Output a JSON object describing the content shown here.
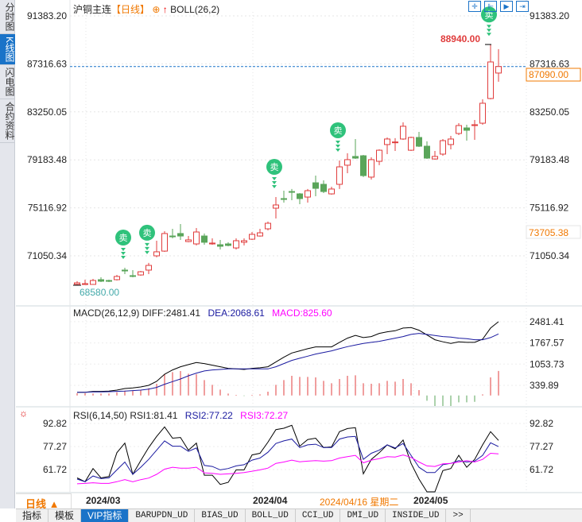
{
  "sidebar": {
    "tabs": [
      {
        "label": "分时图",
        "active": false
      },
      {
        "label": "K线图",
        "active": true
      },
      {
        "label": "闪电图",
        "active": false
      },
      {
        "label": "合约资料",
        "active": false
      }
    ]
  },
  "header": {
    "symbol": "沪铜主连",
    "period": "【日线】",
    "indicator": "BOLL(26,2)"
  },
  "toolbar": {
    "icons": [
      "crosshair-icon",
      "zoom-range-icon",
      "play-range-icon",
      "jump-end-icon"
    ]
  },
  "colors": {
    "up": "#e03c3c",
    "down": "#5aa55a",
    "diff": "#000000",
    "dea": "#1a1aa0",
    "macd": "#ff00ff",
    "accent": "#1a73c8",
    "orange": "#f07800"
  },
  "price_axis": {
    "ticks": [
      "91383.20",
      "87316.63",
      "83250.05",
      "79183.48",
      "75116.92",
      "71050.34"
    ],
    "current": "87090.00",
    "mark": "73705.38"
  },
  "annotations": {
    "high": "88940.00",
    "low": "68580.00",
    "sell_label": "卖",
    "sell_at": [
      7,
      10,
      26,
      34,
      53
    ]
  },
  "chart_data": [
    {
      "type": "candlestick",
      "ylim": [
        68580,
        91383.2
      ],
      "ohlc": [
        [
          68640,
          68760,
          68900,
          68580
        ],
        [
          68630,
          68690,
          69030,
          68600
        ],
        [
          68630,
          68960,
          69100,
          68600
        ],
        [
          69030,
          68900,
          69230,
          68830
        ],
        [
          68960,
          68900,
          69030,
          68830
        ],
        [
          69030,
          69300,
          69430,
          68960
        ],
        [
          69840,
          69770,
          70040,
          69500
        ],
        [
          69370,
          69340,
          69840,
          69230
        ],
        [
          69430,
          69700,
          69770,
          69370
        ],
        [
          69840,
          70240,
          70450,
          69500
        ],
        [
          71050,
          71390,
          72330,
          70920
        ],
        [
          71450,
          72940,
          73140,
          71390
        ],
        [
          72730,
          72670,
          73340,
          72530
        ],
        [
          72940,
          72730,
          73740,
          72400
        ],
        [
          72260,
          72400,
          72730,
          72200
        ],
        [
          72060,
          73070,
          73410,
          71930
        ],
        [
          72730,
          72200,
          72940,
          71990
        ],
        [
          72060,
          72130,
          72530,
          71990
        ],
        [
          71990,
          71860,
          72400,
          71590
        ],
        [
          72060,
          71930,
          72200,
          71860
        ],
        [
          71720,
          72330,
          72530,
          71590
        ],
        [
          72200,
          72330,
          72530,
          71930
        ],
        [
          72460,
          72870,
          73070,
          72400
        ],
        [
          72730,
          73000,
          73340,
          72670
        ],
        [
          73340,
          73810,
          73950,
          73200
        ],
        [
          75090,
          75360,
          76030,
          74210
        ],
        [
          75900,
          75830,
          76570,
          75560
        ],
        [
          76500,
          76440,
          76710,
          75760
        ],
        [
          76300,
          75900,
          76370,
          75430
        ],
        [
          76030,
          76570,
          76710,
          75560
        ],
        [
          77240,
          76770,
          77850,
          76100
        ],
        [
          77110,
          76500,
          77450,
          76370
        ],
        [
          76300,
          76710,
          76910,
          76230
        ],
        [
          77110,
          78590,
          79130,
          76710
        ],
        [
          78730,
          79200,
          79740,
          78050
        ],
        [
          79470,
          79330,
          80950,
          79260
        ],
        [
          79530,
          77850,
          79600,
          77720
        ],
        [
          77720,
          79200,
          79400,
          77510
        ],
        [
          79060,
          80000,
          80070,
          78730
        ],
        [
          80480,
          80950,
          81080,
          79670
        ],
        [
          80680,
          80700,
          81020,
          79940
        ],
        [
          80950,
          82030,
          82360,
          80880
        ],
        [
          80000,
          81080,
          81150,
          79940
        ],
        [
          81080,
          80340,
          81550,
          80270
        ],
        [
          80340,
          79330,
          80750,
          79260
        ],
        [
          79260,
          79470,
          79940,
          79200
        ],
        [
          79670,
          80810,
          80950,
          79530
        ],
        [
          80480,
          80950,
          81220,
          80070
        ],
        [
          81420,
          82090,
          82290,
          81280
        ],
        [
          81890,
          81690,
          82160,
          80810
        ],
        [
          82090,
          82160,
          82560,
          80880
        ],
        [
          82290,
          83980,
          84310,
          82160
        ],
        [
          84380,
          87480,
          88940,
          84310
        ],
        [
          86540,
          87090,
          88560,
          85800
        ]
      ]
    },
    {
      "type": "macd",
      "title": "MACD(26,12,9)",
      "diff_label": "DIFF:2481.41",
      "dea_label": "DEA:2068.61",
      "macd_label": "MACD:825.60",
      "ticks": [
        "2481.41",
        "1767.57",
        "1053.73",
        "339.89"
      ],
      "diff": [
        108,
        108,
        135,
        135,
        144,
        179,
        233,
        251,
        286,
        340,
        474,
        715,
        857,
        964,
        1036,
        1107,
        1071,
        1018,
        964,
        911,
        893,
        875,
        911,
        929,
        964,
        1125,
        1285,
        1428,
        1500,
        1571,
        1633,
        1633,
        1633,
        1785,
        1928,
        2017,
        1946,
        1981,
        2088,
        2142,
        2177,
        2267,
        2284,
        2195,
        2035,
        1874,
        1803,
        1749,
        1803,
        1785,
        1785,
        1892,
        2267,
        2481.41
      ],
      "dea": [
        108,
        108,
        117,
        117,
        126,
        135,
        144,
        162,
        179,
        215,
        269,
        376,
        465,
        554,
        661,
        750,
        822,
        857,
        875,
        893,
        893,
        893,
        893,
        893,
        893,
        964,
        1071,
        1178,
        1250,
        1321,
        1392,
        1446,
        1500,
        1571,
        1642,
        1696,
        1749,
        1785,
        1821,
        1874,
        1928,
        1981,
        2053,
        2088,
        2053,
        2017,
        1981,
        1963,
        1928,
        1910,
        1874,
        1874,
        1946,
        2068.61
      ],
      "macd": [
        71,
        71,
        62,
        62,
        62,
        107,
        160,
        160,
        178,
        241,
        392,
        713,
        784,
        820,
        731,
        713,
        517,
        356,
        196,
        62,
        18,
        -18,
        18,
        36,
        125,
        356,
        517,
        659,
        624,
        624,
        606,
        490,
        410,
        552,
        659,
        677,
        410,
        392,
        410,
        490,
        463,
        552,
        410,
        178,
        -178,
        -356,
        -356,
        -356,
        -232,
        -232,
        -214,
        36,
        606,
        825.6
      ]
    },
    {
      "type": "line",
      "title": "RSI(6,14,50)",
      "rsi1_label": "RSI1:81.41",
      "rsi2_label": "RSI2:77.22",
      "rsi3_label": "RSI3:72.27",
      "ticks": [
        "92.82",
        "77.27",
        "61.72"
      ],
      "rsi1": [
        56.1,
        53.5,
        62.4,
        56.1,
        57.0,
        73.1,
        79.6,
        58.5,
        67.7,
        76.6,
        84.1,
        90.5,
        82.9,
        83.4,
        74.8,
        79.6,
        57.9,
        57.9,
        51.7,
        53.1,
        61.5,
        61.5,
        71.6,
        72.7,
        80.2,
        88.7,
        89.6,
        91.6,
        77.5,
        82.0,
        82.9,
        76.6,
        77.0,
        87.3,
        89.4,
        90.0,
        58.8,
        68.6,
        73.1,
        78.4,
        75.7,
        81.6,
        65.9,
        55.3,
        46.7,
        46.7,
        61.0,
        62.4,
        71.3,
        63.3,
        68.6,
        78.4,
        87.3,
        81.41
      ],
      "rsi2": [
        55.3,
        53.5,
        57.4,
        55.6,
        56.1,
        61.5,
        66.8,
        58.5,
        63.3,
        68.6,
        74.8,
        81.1,
        77.5,
        77.5,
        74.0,
        76.3,
        64.5,
        63.8,
        61.5,
        62.4,
        64.2,
        65.0,
        68.1,
        69.5,
        73.4,
        79.3,
        81.1,
        82.3,
        76.6,
        78.4,
        78.8,
        76.6,
        76.6,
        82.3,
        83.7,
        84.1,
        68.6,
        72.7,
        74.8,
        78.4,
        76.3,
        79.3,
        71.3,
        63.3,
        59.7,
        59.7,
        65.0,
        65.9,
        67.7,
        66.8,
        67.4,
        71.3,
        79.8,
        77.22
      ],
      "rsi3": [
        52.1,
        52.4,
        52.8,
        52.4,
        52.4,
        53.5,
        54.9,
        53.5,
        54.9,
        56.0,
        58.5,
        62.0,
        63.3,
        62.7,
        62.7,
        63.3,
        59.5,
        59.2,
        58.5,
        58.8,
        59.2,
        59.7,
        60.6,
        61.5,
        62.7,
        65.9,
        66.8,
        68.1,
        67.0,
        67.4,
        67.7,
        67.4,
        67.7,
        69.5,
        70.4,
        71.3,
        66.3,
        68.1,
        69.1,
        70.4,
        70.2,
        71.6,
        69.9,
        66.8,
        64.2,
        63.8,
        65.6,
        65.9,
        66.8,
        67.7,
        66.8,
        68.6,
        72.7,
        72.27
      ]
    }
  ],
  "date_axis": {
    "period_label": "日线 ▲",
    "labels": [
      "2024/03",
      "2024/04",
      "2024/05"
    ],
    "cursor": "2024/04/16 星期二"
  },
  "bottom_tabs": [
    {
      "label": "指标",
      "active": false
    },
    {
      "label": "模板",
      "active": false
    },
    {
      "label": "VIP指标",
      "active": true
    },
    {
      "label": "BARUPDN_UD"
    },
    {
      "label": "BIAS_UD"
    },
    {
      "label": "BOLL_UD"
    },
    {
      "label": "CCI_UD"
    },
    {
      "label": "DMI_UD"
    },
    {
      "label": "INSIDE_UD"
    },
    {
      "label": ">>"
    }
  ]
}
